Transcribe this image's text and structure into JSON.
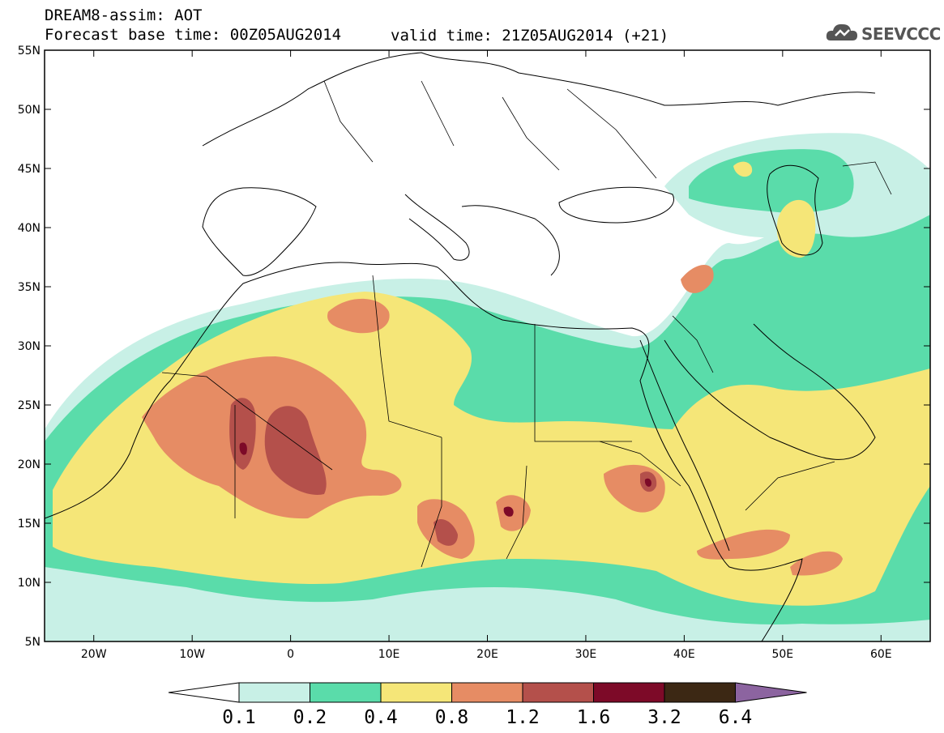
{
  "header": {
    "title_line1": "DREAM8-assim: AOT",
    "title_line2": "Forecast base time: 00Z05AUG2014",
    "valid_time": "valid time: 21Z05AUG2014 (+21)",
    "logo_text": "SEEVCCC"
  },
  "axes": {
    "lon_labels": [
      "20W",
      "10W",
      "0",
      "10E",
      "20E",
      "30E",
      "40E",
      "50E",
      "60E"
    ],
    "lat_labels": [
      "5N",
      "10N",
      "15N",
      "20N",
      "25N",
      "30N",
      "35N",
      "40N",
      "45N",
      "50N",
      "55N"
    ]
  },
  "colorbar": {
    "levels": [
      "0.1",
      "0.2",
      "0.4",
      "0.8",
      "1.2",
      "1.6",
      "3.2",
      "6.4"
    ],
    "colors": [
      "#ffffff",
      "#c8f0e6",
      "#5adcaa",
      "#f5e678",
      "#e68c64",
      "#b4504b",
      "#7d0a28",
      "#3c2814",
      "#8c64a0"
    ]
  }
}
